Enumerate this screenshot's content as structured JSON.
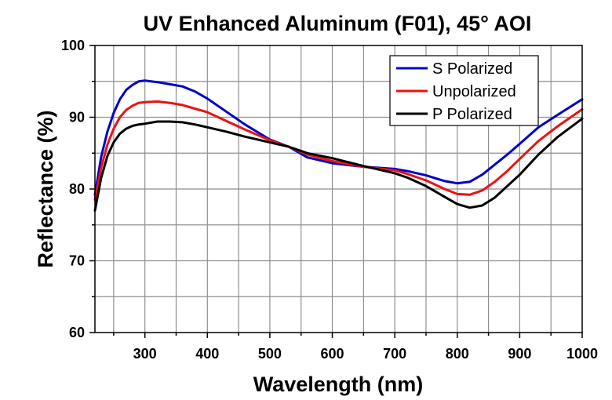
{
  "chart_data": {
    "type": "line",
    "title": "UV Enhanced Aluminum (F01), 45° AOI",
    "xlabel": "Wavelength (nm)",
    "ylabel": "Reflectance (%)",
    "xlim": [
      220,
      1000
    ],
    "ylim": [
      60,
      100
    ],
    "xticks": [
      300,
      400,
      500,
      600,
      700,
      800,
      900,
      1000
    ],
    "yticks": [
      60,
      70,
      80,
      90,
      100
    ],
    "x_tick_labels": [
      "300",
      "400",
      "500",
      "600",
      "700",
      "800",
      "900",
      "1000"
    ],
    "y_tick_labels": [
      "60",
      "70",
      "80",
      "90",
      "100"
    ],
    "grid": true,
    "legend_position": "top-right",
    "series": [
      {
        "name": "S Polarized",
        "color": "#0000cc",
        "x": [
          220,
          230,
          240,
          250,
          260,
          270,
          280,
          290,
          300,
          320,
          340,
          360,
          380,
          400,
          430,
          460,
          500,
          530,
          560,
          600,
          650,
          700,
          720,
          750,
          780,
          800,
          820,
          840,
          860,
          880,
          900,
          930,
          960,
          1000
        ],
        "y": [
          79.2,
          84.5,
          88.0,
          90.6,
          92.5,
          93.8,
          94.5,
          95.0,
          95.1,
          94.9,
          94.6,
          94.3,
          93.6,
          92.6,
          90.8,
          89.0,
          86.9,
          85.9,
          84.4,
          83.6,
          83.1,
          82.8,
          82.5,
          81.9,
          81.1,
          80.8,
          81.0,
          82.0,
          83.4,
          84.8,
          86.3,
          88.6,
          90.3,
          92.5
        ]
      },
      {
        "name": "Unpolarized",
        "color": "#ee1111",
        "x": [
          220,
          230,
          240,
          250,
          260,
          270,
          280,
          290,
          300,
          320,
          340,
          360,
          380,
          400,
          430,
          460,
          500,
          530,
          560,
          600,
          650,
          700,
          720,
          750,
          780,
          800,
          820,
          840,
          860,
          880,
          900,
          930,
          960,
          1000
        ],
        "y": [
          78.5,
          83.0,
          86.2,
          88.4,
          90.0,
          91.0,
          91.6,
          92.0,
          92.1,
          92.2,
          92.0,
          91.7,
          91.2,
          90.7,
          89.5,
          88.3,
          86.8,
          85.9,
          84.8,
          83.9,
          83.1,
          82.6,
          82.1,
          81.2,
          80.0,
          79.3,
          79.2,
          79.8,
          81.0,
          82.5,
          84.2,
          86.7,
          88.7,
          91.1
        ]
      },
      {
        "name": "P Polarized",
        "color": "#000000",
        "x": [
          220,
          230,
          240,
          250,
          260,
          270,
          280,
          290,
          300,
          320,
          340,
          360,
          380,
          400,
          430,
          460,
          500,
          530,
          560,
          600,
          650,
          700,
          720,
          750,
          780,
          800,
          820,
          840,
          860,
          880,
          900,
          930,
          960,
          1000
        ],
        "y": [
          77.0,
          81.6,
          84.6,
          86.5,
          87.7,
          88.4,
          88.8,
          89.0,
          89.1,
          89.4,
          89.4,
          89.3,
          89.0,
          88.6,
          88.0,
          87.3,
          86.5,
          85.9,
          85.0,
          84.3,
          83.2,
          82.2,
          81.6,
          80.4,
          78.9,
          77.9,
          77.4,
          77.7,
          78.8,
          80.4,
          82.0,
          84.8,
          87.2,
          89.8
        ]
      }
    ]
  }
}
